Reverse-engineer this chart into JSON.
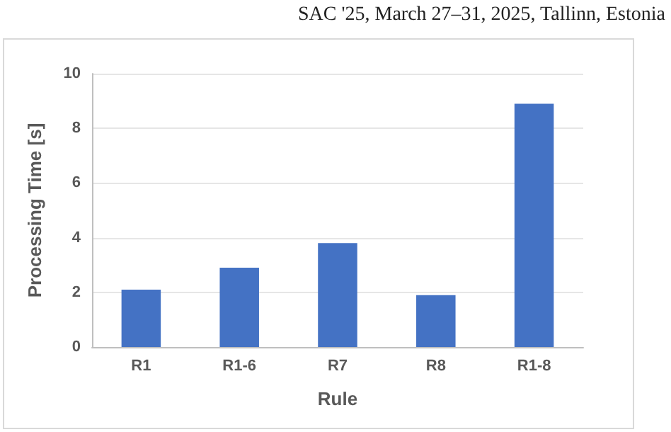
{
  "chart_data": {
    "type": "bar",
    "xlabel": "Rule",
    "ylabel": "Processing Time [s]",
    "annotations": [
      "SAC '25, March 27–31, 2025, Tallinn, Estonia"
    ],
    "categories": [
      "R1",
      "R1-6",
      "R7",
      "R8",
      "R1-8"
    ],
    "values": [
      2.1,
      2.9,
      3.8,
      1.9,
      8.9
    ],
    "color": "#4472c4",
    "ylim": [
      0,
      10
    ],
    "yticks": [
      0,
      2,
      4,
      6,
      8,
      10
    ],
    "grid": "y"
  }
}
